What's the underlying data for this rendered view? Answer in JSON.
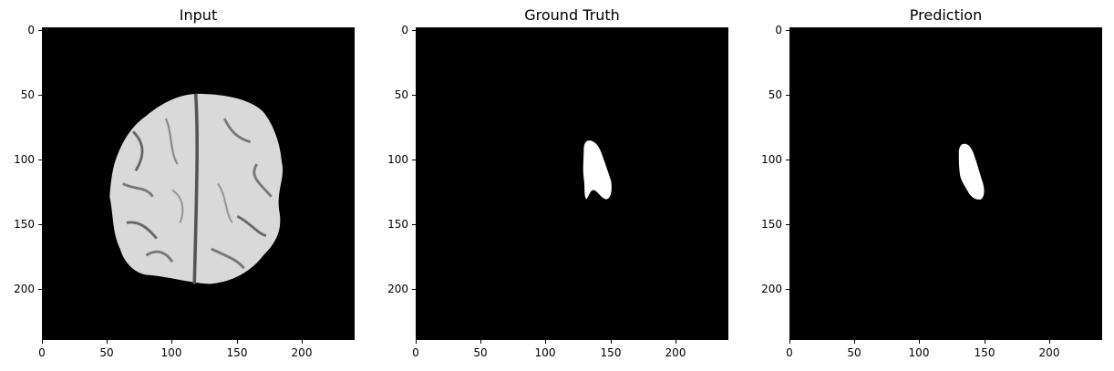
{
  "figure": {
    "panels": [
      {
        "title": "Input"
      },
      {
        "title": "Ground Truth"
      },
      {
        "title": "Prediction"
      }
    ],
    "axis": {
      "x_ticks": [
        "0",
        "50",
        "100",
        "150",
        "200"
      ],
      "y_ticks": [
        "0",
        "50",
        "100",
        "150",
        "200"
      ],
      "range": [
        0,
        240
      ]
    }
  },
  "colors": {
    "background": "#000000",
    "mask": "#ffffff",
    "brain": "#e6e6e6"
  }
}
